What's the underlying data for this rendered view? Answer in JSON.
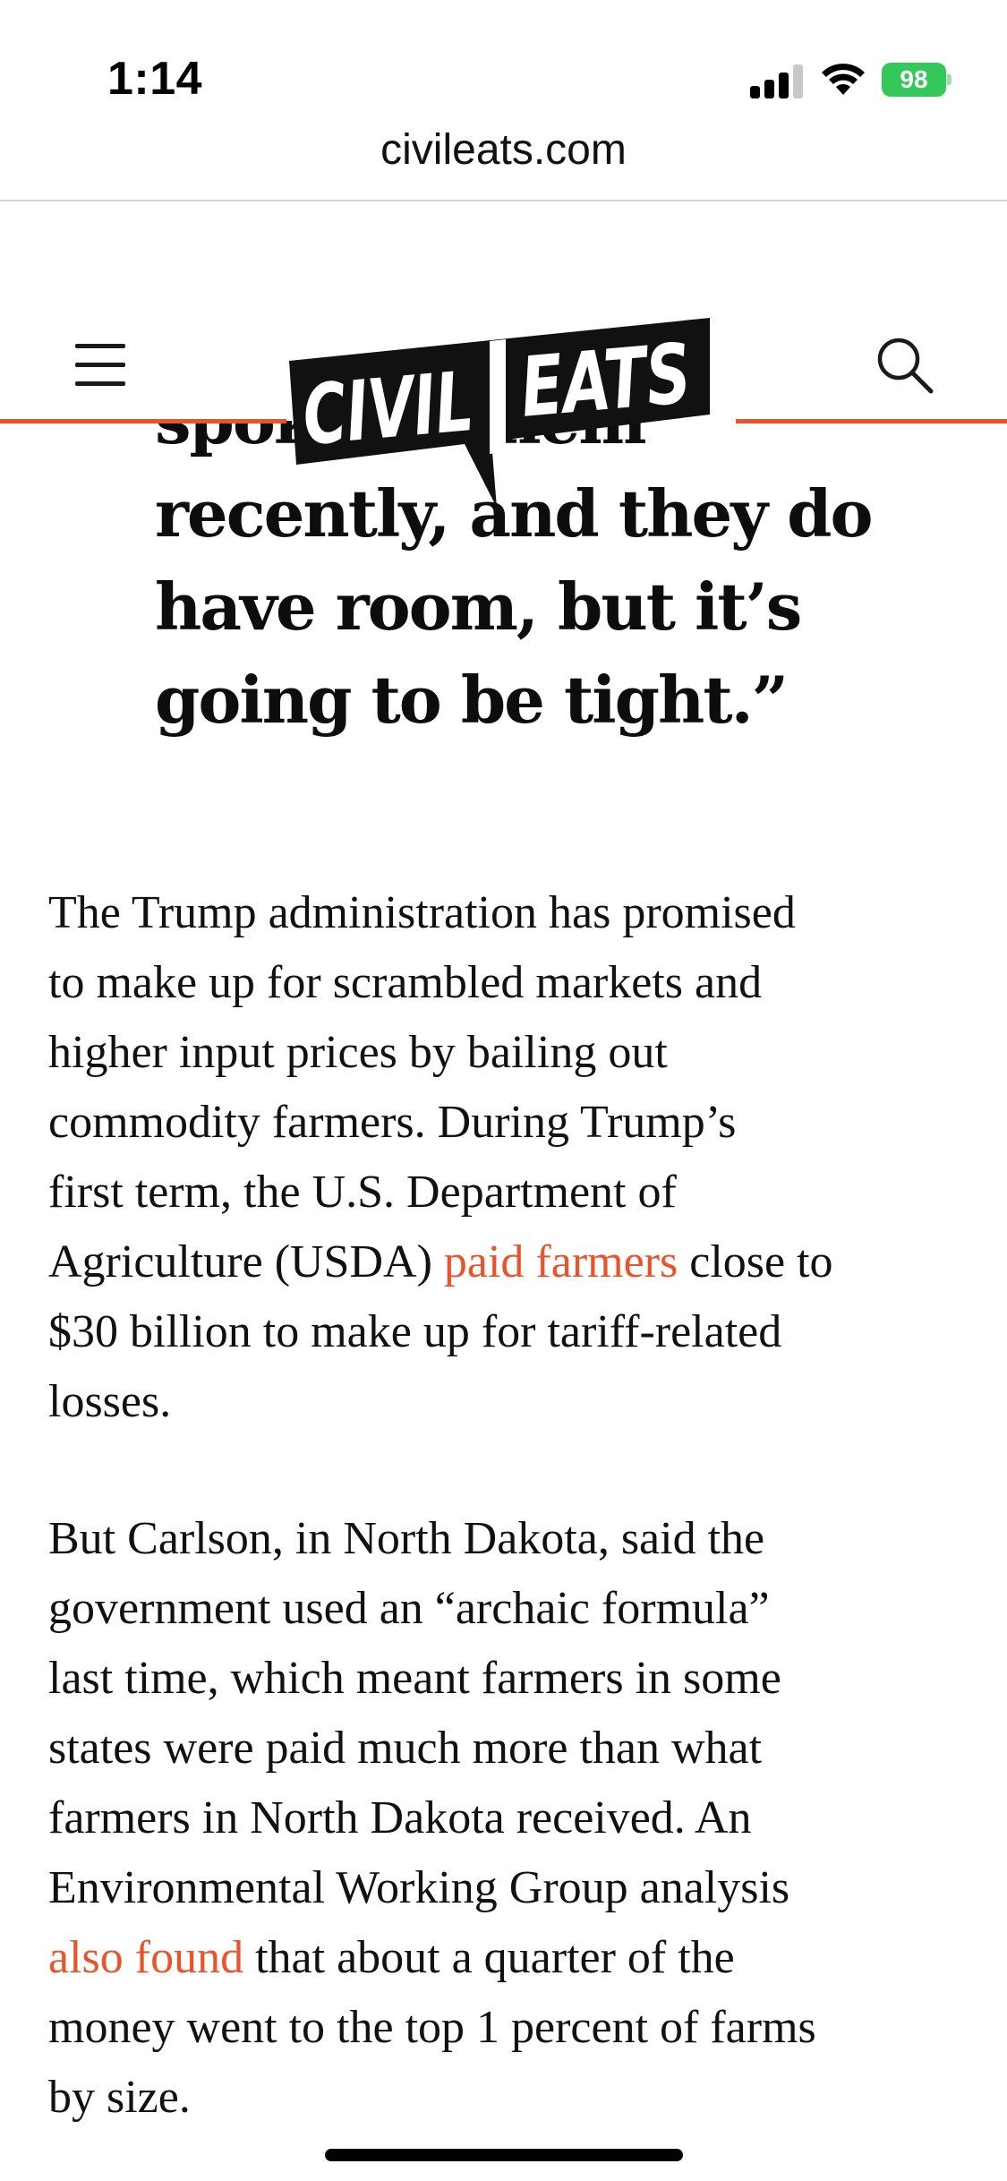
{
  "status_bar": {
    "time": "1:14",
    "battery_level": "98"
  },
  "browser": {
    "url": "civileats.com"
  },
  "site_header": {
    "logo_left": "CIVIL",
    "logo_right": "EATS"
  },
  "article": {
    "pullquote_lines": [
      "spoke to them",
      "recently, and they do",
      "have room, but it’s",
      "going to be tight.”"
    ],
    "paragraph_1": {
      "lines": [
        "The Trump administration has promised",
        "to make up for scrambled markets and",
        "higher input prices by bailing out",
        "commodity farmers. During Trump’s",
        "first term, the U.S. Department of"
      ],
      "line6_before": "Agriculture (USDA) ",
      "line6_link": "paid farmers",
      "line6_after": " close to",
      "line7": "$30 billion to make up for tariff-related",
      "line8": "losses."
    },
    "paragraph_2": {
      "lines": [
        "But Carlson, in North Dakota, said the",
        "government used an “archaic formula”",
        "last time, which meant farmers in some",
        "states were paid much more than what",
        "farmers in North Dakota received. An",
        "Environmental Working Group analysis"
      ],
      "line7_link": "also found",
      "line7_after": " that about a quarter of the",
      "line8": "money went to the top 1 percent of farms",
      "line9": "by size."
    }
  },
  "colors": {
    "accent": "#e8552c",
    "logo": "#111111",
    "battery": "#34c759"
  }
}
